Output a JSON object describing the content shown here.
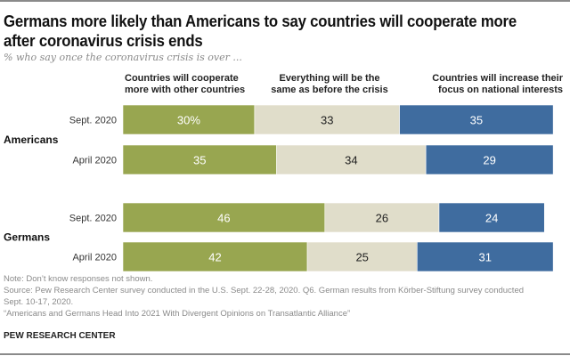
{
  "title": "Germans more likely than Americans to say countries will cooperate more after coronavirus crisis ends",
  "subtitle": "% who say once the coronavirus crisis is over ...",
  "notes": {
    "note": "Note: Don’t know responses not shown.",
    "source_line1": "Source: Pew Research Center survey conducted in the U.S. Sept. 22-28, 2020. Q6. German results from Körber-Stiftung survey conducted",
    "source_line2": "Sept. 10-17, 2020.",
    "report": "“Americans and Germans Head Into 2021 With Divergent Opinions on Transatlantic Alliance”"
  },
  "brand": "PEW RESEARCH CENTER",
  "chart_data": {
    "type": "bar",
    "orientation": "horizontal",
    "stacked": true,
    "title": "Germans more likely than Americans to say countries will cooperate more after coronavirus crisis ends",
    "subtitle": "% who say once the coronavirus crisis is over ...",
    "series": [
      {
        "name": "Countries will cooperate more with other countries",
        "name_lines": [
          "Countries will cooperate",
          "more with other countries"
        ],
        "color": "#98a650"
      },
      {
        "name": "Everything will be the same as before the crisis",
        "name_lines": [
          "Everything will be the",
          "same as before the crisis"
        ],
        "color": "#e0ddca"
      },
      {
        "name": "Countries will increase their focus on national interests",
        "name_lines": [
          "Countries will increase their",
          "focus on national interests"
        ],
        "color": "#3f6c9f"
      }
    ],
    "groups": [
      {
        "label": "Americans",
        "rows": [
          {
            "label": "Sept. 2020",
            "values": [
              30,
              33,
              35
            ],
            "value_labels": [
              "30%",
              "33",
              "35"
            ]
          },
          {
            "label": "April 2020",
            "values": [
              35,
              34,
              29
            ],
            "value_labels": [
              "35",
              "34",
              "29"
            ]
          }
        ]
      },
      {
        "label": "Germans",
        "rows": [
          {
            "label": "Sept. 2020",
            "values": [
              46,
              26,
              24
            ],
            "value_labels": [
              "46",
              "26",
              "24"
            ]
          },
          {
            "label": "April 2020",
            "values": [
              42,
              25,
              31
            ],
            "value_labels": [
              "42",
              "25",
              "31"
            ]
          }
        ]
      }
    ],
    "label_colors": [
      "#ffffff",
      "#222222",
      "#ffffff"
    ],
    "xlim": [
      0,
      100
    ],
    "grid": false,
    "legend": "top"
  }
}
